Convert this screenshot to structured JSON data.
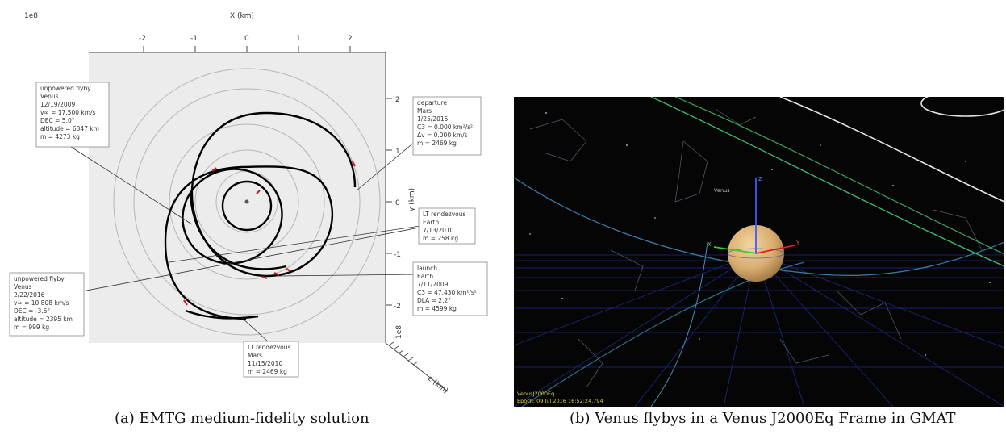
{
  "figure_a": {
    "scale_top": "1e8",
    "scale_right": "1e8",
    "x_label": "X (km)",
    "y_label": "y (km)",
    "z_label": "z (km)",
    "x_ticks": [
      "-2",
      "-1",
      "0",
      "1",
      "2"
    ],
    "y_ticks": [
      "2",
      "1",
      "0",
      "-1",
      "-2"
    ],
    "annotations": {
      "venus1": [
        "unpowered flyby",
        "Venus",
        "12/19/2009",
        "v∞ = 17.500 km/s",
        "DEC = 5.0°",
        "altitude = 6347 km",
        "m = 4273 kg"
      ],
      "mars_depart": [
        "departure",
        "Mars",
        "1/25/2015",
        "C3 = 0.000 km²/s²",
        "Δv = 0.000 km/s",
        "m = 2469 kg"
      ],
      "earth_rdv": [
        "LT rendezvous",
        "Earth",
        "7/13/2010",
        "m = 258 kg"
      ],
      "launch": [
        "launch",
        "Earth",
        "7/11/2009",
        "C3 = 47.430 km²/s²",
        "DLA = 2.2°",
        "m = 4599 kg"
      ],
      "venus2": [
        "unpowered flyby",
        "Venus",
        "2/22/2016",
        "v∞ = 10.808 km/s",
        "DEC = -3.6°",
        "altitude = 2395 km",
        "m = 999 kg"
      ],
      "mars_rdv": [
        "LT rendezvous",
        "Mars",
        "11/15/2010",
        "m = 2469 kg"
      ]
    }
  },
  "figure_b": {
    "frame_label": "VenusJ2000Eq",
    "epoch_label": "Epoch: 09 Jul 2016 16:52:24.794",
    "venus_label": "Venus",
    "axis_z": "Z",
    "axis_x": "X",
    "axis_y": "Y"
  },
  "captions": {
    "a": "(a) EMTG medium-fidelity solution",
    "b": "(b) Venus flybys in a Venus J2000Eq Frame in GMAT"
  }
}
